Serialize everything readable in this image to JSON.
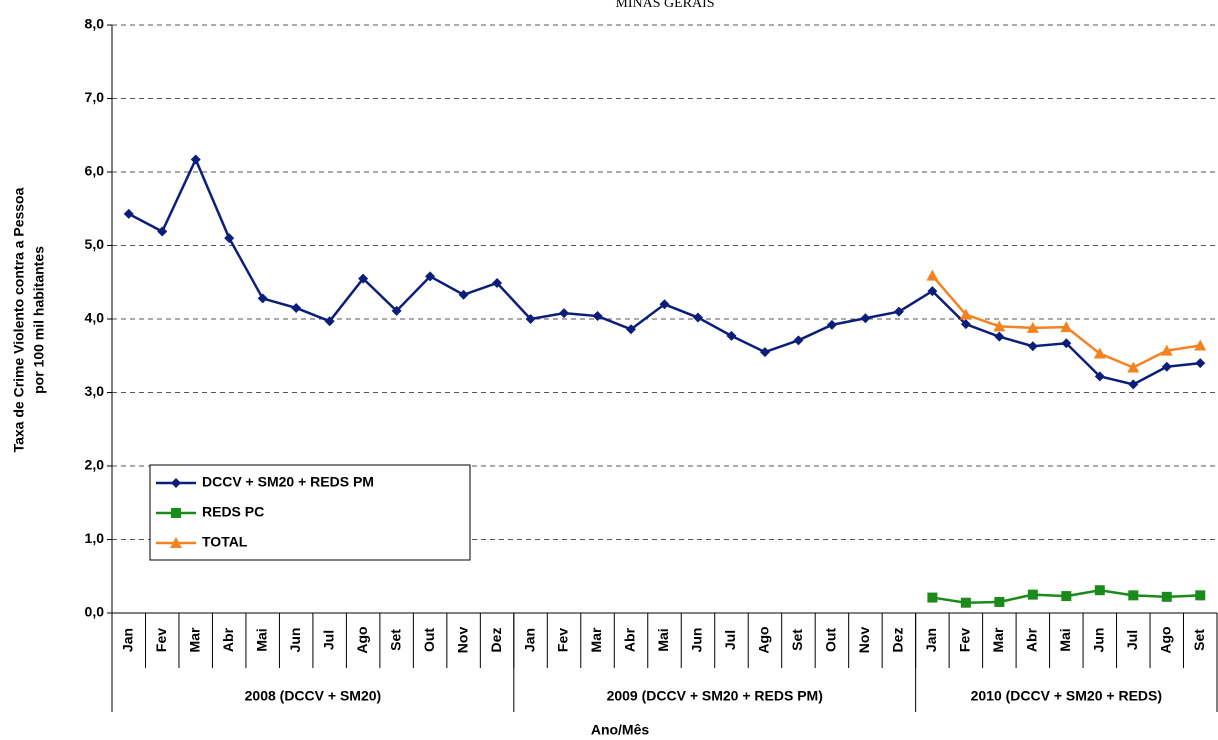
{
  "chart_data": {
    "type": "line",
    "title": "MINAS GERAIS",
    "ylabel": [
      "Taxa de Crime Violento contra a Pessoa",
      "por 100 mil habitantes"
    ],
    "xlabel": "Ano/Mês",
    "categories": [
      "Jan",
      "Fev",
      "Mar",
      "Abr",
      "Mai",
      "Jun",
      "Jul",
      "Ago",
      "Set",
      "Out",
      "Nov",
      "Dez",
      "Jan",
      "Fev",
      "Mar",
      "Abr",
      "Mai",
      "Jun",
      "Jul",
      "Ago",
      "Set",
      "Out",
      "Nov",
      "Dez",
      "Jan",
      "Fev",
      "Mar",
      "Abr",
      "Mai",
      "Jun",
      "Jul",
      "Ago",
      "Set"
    ],
    "groups": [
      {
        "label": "2008 (DCCV + SM20)",
        "count": 12
      },
      {
        "label": "2009 (DCCV + SM20 + REDS PM)",
        "count": 12
      },
      {
        "label": "2010 (DCCV + SM20 + REDS)",
        "count": 9
      }
    ],
    "series": [
      {
        "name": "DCCV + SM20 + REDS PM",
        "color": "#0b1f7a",
        "marker": "diamond",
        "values": [
          5.43,
          5.19,
          6.17,
          5.1,
          4.28,
          4.15,
          3.97,
          4.55,
          4.11,
          4.58,
          4.33,
          4.49,
          4.0,
          4.08,
          4.04,
          3.86,
          4.2,
          4.02,
          3.77,
          3.55,
          3.71,
          3.92,
          4.01,
          4.1,
          4.38,
          3.93,
          3.76,
          3.63,
          3.67,
          3.22,
          3.11,
          3.35,
          3.4
        ]
      },
      {
        "name": "REDS PC",
        "color": "#1a8a1a",
        "marker": "square",
        "values": [
          null,
          null,
          null,
          null,
          null,
          null,
          null,
          null,
          null,
          null,
          null,
          null,
          null,
          null,
          null,
          null,
          null,
          null,
          null,
          null,
          null,
          null,
          null,
          null,
          0.21,
          0.14,
          0.15,
          0.25,
          0.23,
          0.31,
          0.24,
          0.22,
          0.24
        ]
      },
      {
        "name": "TOTAL",
        "color": "#f58220",
        "marker": "triangle",
        "values": [
          null,
          null,
          null,
          null,
          null,
          null,
          null,
          null,
          null,
          null,
          null,
          null,
          null,
          null,
          null,
          null,
          null,
          null,
          null,
          null,
          null,
          null,
          null,
          null,
          4.59,
          4.06,
          3.9,
          3.88,
          3.89,
          3.53,
          3.34,
          3.57,
          3.64
        ]
      }
    ],
    "ylim": [
      0,
      8
    ],
    "yticks": [
      {
        "value": 0,
        "label": "0,0"
      },
      {
        "value": 1,
        "label": "1,0"
      },
      {
        "value": 2,
        "label": "2,0"
      },
      {
        "value": 3,
        "label": "3,0"
      },
      {
        "value": 4,
        "label": "4,0"
      },
      {
        "value": 5,
        "label": "5,0"
      },
      {
        "value": 6,
        "label": "6,0"
      },
      {
        "value": 7,
        "label": "7,0"
      },
      {
        "value": 8,
        "label": "8,0"
      }
    ],
    "grid": true,
    "legend": "lower left"
  }
}
